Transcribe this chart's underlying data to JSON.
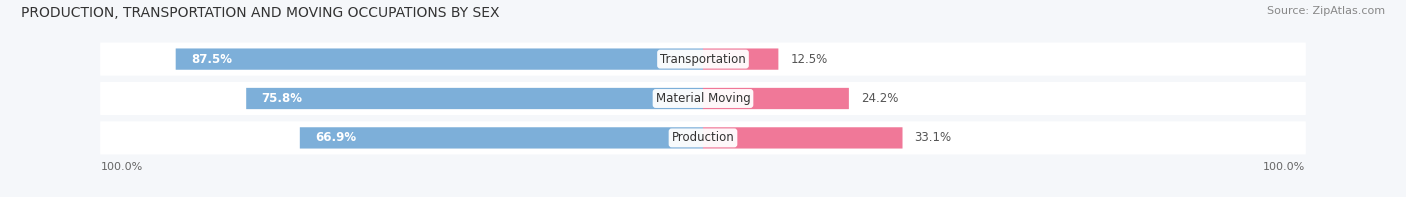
{
  "title": "PRODUCTION, TRANSPORTATION AND MOVING OCCUPATIONS BY SEX",
  "source": "Source: ZipAtlas.com",
  "categories": [
    "Transportation",
    "Material Moving",
    "Production"
  ],
  "male_values": [
    87.5,
    75.8,
    66.9
  ],
  "female_values": [
    12.5,
    24.2,
    33.1
  ],
  "male_color": "#7dafd9",
  "female_color": "#f07898",
  "bar_bg_color": "#e8edf2",
  "row_bg_color": "#f0f2f5",
  "left_label": "100.0%",
  "right_label": "100.0%",
  "title_fontsize": 10.0,
  "label_fontsize": 8.5,
  "tick_fontsize": 8.0,
  "legend_fontsize": 8.5,
  "source_fontsize": 8.0,
  "background_color": "#f5f7fa",
  "bar_height": 0.52,
  "category_label_fontsize": 8.5,
  "xlim_left": -105,
  "xlim_right": 105
}
